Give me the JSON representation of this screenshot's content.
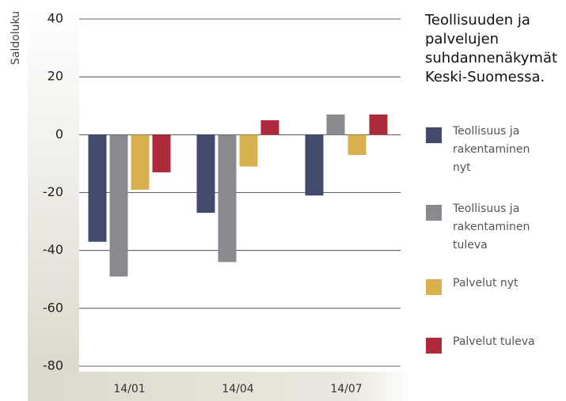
{
  "chart_data": {
    "type": "bar",
    "title": "Teollisuuden ja palvelujen suhdannenäkymät Keski-Suomessa.",
    "y_label": "Saldoluku",
    "categories": [
      "14/01",
      "14/04",
      "14/07"
    ],
    "series": [
      {
        "name": "Teollisuus ja rakentaminen nyt",
        "color": "#424a6d",
        "values": [
          -37,
          -27,
          -21
        ]
      },
      {
        "name": "Teollisuus ja rakentaminen tuleva",
        "color": "#898a8e",
        "values": [
          -49,
          -44,
          7
        ]
      },
      {
        "name": "Palvelut nyt",
        "color": "#d8b04e",
        "values": [
          -19,
          -11,
          -7
        ]
      },
      {
        "name": "Palvelut tuleva",
        "color": "#ae2a3b",
        "values": [
          -13,
          5,
          7
        ]
      }
    ],
    "ylim": [
      -80,
      40
    ],
    "yticks": [
      -80,
      -60,
      -40,
      -20,
      0,
      20,
      40
    ],
    "grid": true
  }
}
